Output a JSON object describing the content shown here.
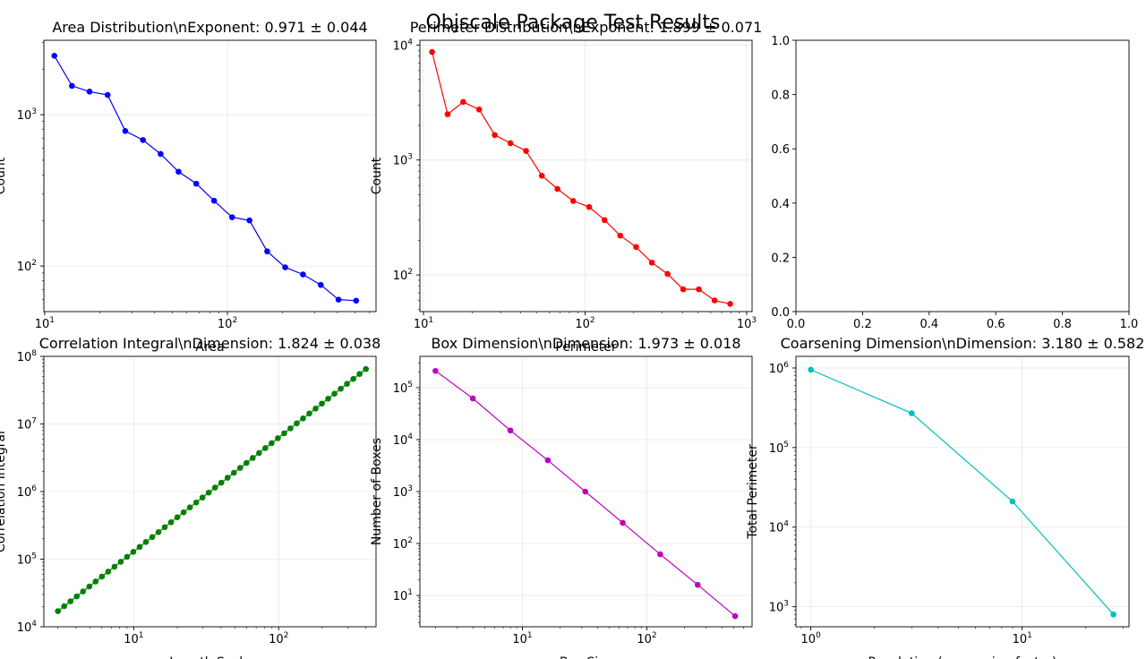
{
  "figure": {
    "suptitle": "Objscale Package Test Results"
  },
  "chart_data": [
    {
      "type": "line",
      "title": "Area Distribution\\nExponent: 0.971 ± 0.044",
      "xlabel": "Area",
      "ylabel": "Count",
      "xscale": "log",
      "yscale": "log",
      "xlim": [
        9.9,
        650
      ],
      "ylim": [
        50,
        3100
      ],
      "grid": true,
      "color": "#0000ff",
      "series": [
        {
          "x": [
            11.3,
            14.1,
            17.6,
            22.1,
            27.6,
            34.5,
            43.1,
            54.0,
            67.5,
            84.5,
            106,
            132,
            165,
            207,
            259,
            324,
            405,
            506
          ],
          "y": [
            2450,
            1550,
            1420,
            1350,
            780,
            680,
            550,
            420,
            350,
            270,
            210,
            200,
            125,
            98,
            88,
            75,
            60,
            59
          ]
        }
      ]
    },
    {
      "type": "line",
      "title": "Perimeter Distribution\\nExponent: 1.899 ± 0.071",
      "xlabel": "Perimeter",
      "ylabel": "Count",
      "xscale": "log",
      "yscale": "log",
      "xlim": [
        9.5,
        1080
      ],
      "ylim": [
        48,
        11000
      ],
      "grid": true,
      "color": "#ff0000",
      "series": [
        {
          "x": [
            11.3,
            14.1,
            17.6,
            22.1,
            27.6,
            34.5,
            43.1,
            54.0,
            67.5,
            84.5,
            106,
            132,
            165,
            207,
            259,
            324,
            405,
            506,
            633,
            791
          ],
          "y": [
            8700,
            2500,
            3200,
            2750,
            1650,
            1400,
            1200,
            730,
            560,
            440,
            390,
            300,
            220,
            175,
            128,
            102,
            75,
            75,
            60,
            56
          ]
        }
      ]
    },
    {
      "type": "line",
      "title": "",
      "xlabel": "",
      "ylabel": "",
      "xscale": "linear",
      "yscale": "linear",
      "xlim": [
        0,
        1
      ],
      "ylim": [
        0,
        1
      ],
      "grid": false,
      "series": []
    },
    {
      "type": "line",
      "title": "Correlation Integral\\nDimension: 1.824 ± 0.038",
      "xlabel": "Length Scale",
      "ylabel": "Correlation Integral",
      "xscale": "log",
      "yscale": "log",
      "xlim": [
        2.4,
        470
      ],
      "ylim": [
        10000,
        100000000
      ],
      "grid": true,
      "color": "#008000",
      "x_range": [
        3.0,
        400
      ],
      "y_range": [
        17000,
        65000000
      ],
      "npoints": 50
    },
    {
      "type": "line",
      "title": "Box Dimension\\nDimension: 1.973 ± 0.018",
      "xlabel": "Box Size",
      "ylabel": "Number of Boxes",
      "xscale": "log",
      "yscale": "log",
      "xlim": [
        1.5,
        700
      ],
      "ylim": [
        2.5,
        400000
      ],
      "grid": true,
      "color": "#bf00bf",
      "series": [
        {
          "x": [
            2,
            4,
            8,
            16,
            32,
            64,
            128,
            256,
            512
          ],
          "y": [
            210000,
            62000,
            15000,
            4000,
            1000,
            250,
            62,
            16,
            4
          ]
        }
      ]
    },
    {
      "type": "line",
      "title": "Coarsening Dimension\\nDimension: 3.180 ± 0.582",
      "xlabel": "Resolution (coarsening factor)",
      "ylabel": "Total Perimeter",
      "xscale": "log",
      "yscale": "log",
      "xlim": [
        0.85,
        32
      ],
      "ylim": [
        560,
        1400000
      ],
      "grid": true,
      "color": "#00bfbf",
      "series": [
        {
          "x": [
            1,
            3,
            9,
            27
          ],
          "y": [
            950000,
            270000,
            21000,
            800
          ]
        }
      ]
    }
  ]
}
